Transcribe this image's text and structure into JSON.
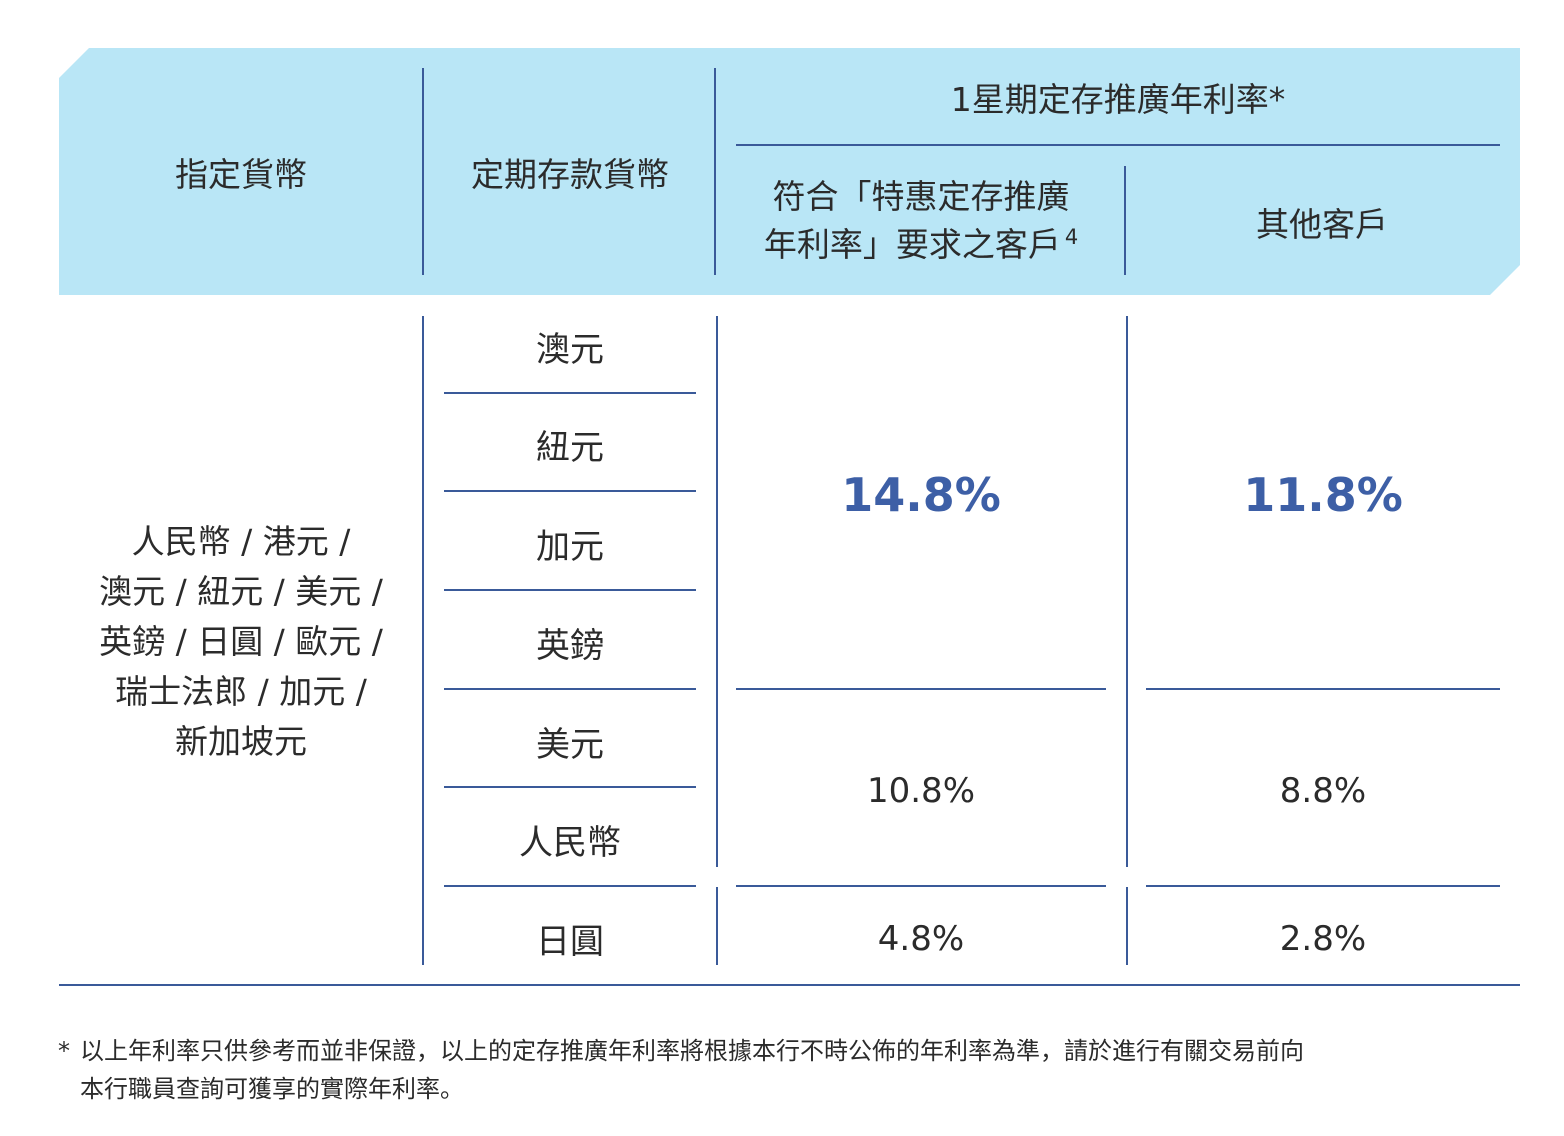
{
  "header": {
    "col1": "指定貨幣",
    "col2": "定期存款貨幣",
    "group": "1星期定存推廣年利率*",
    "sub1_line1": "符合「特惠定存推廣",
    "sub1_line2": "年利率」要求之客戶",
    "sub1_footnote": "4",
    "sub2": "其他客戶"
  },
  "designated_currencies": [
    "人民幣 / 港元 /",
    "澳元 / 紐元 / 美元 /",
    "英鎊 / 日圓 / 歐元 /",
    "瑞士法郎 / 加元 /",
    "新加坡元"
  ],
  "deposit_currencies": [
    "澳元",
    "紐元",
    "加元",
    "英鎊",
    "美元",
    "人民幣",
    "日圓"
  ],
  "rates": {
    "group_a": {
      "qualified": "14.8%",
      "others": "11.8%"
    },
    "group_b": {
      "qualified": "10.8%",
      "others": "8.8%"
    },
    "group_c": {
      "qualified": "4.8%",
      "others": "2.8%"
    }
  },
  "footnote": {
    "mark": "*",
    "line1": "以上年利率只供參考而並非保證，以上的定存推廣年利率將根據本行不時公佈的年利率為準，請於進行有關交易前向",
    "line2": "本行職員查詢可獲享的實際年利率。"
  },
  "colors": {
    "header_bg": "#b9e6f6",
    "line": "#3a5a99",
    "highlight": "#3d5fa6"
  }
}
